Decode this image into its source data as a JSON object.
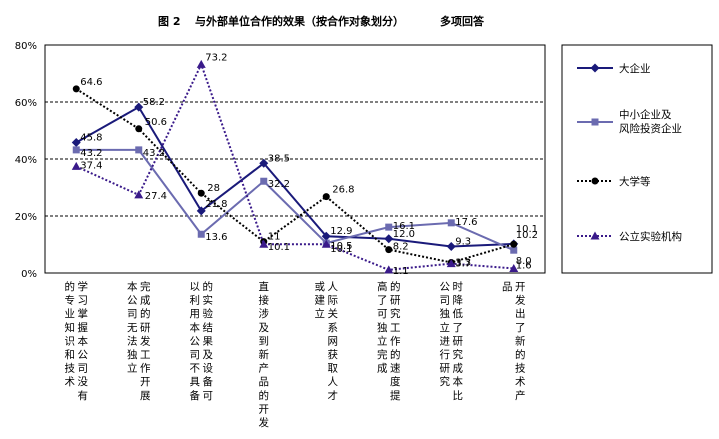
{
  "chart_data": {
    "type": "line",
    "title_number": "图 2",
    "title": "与外部单位合作的效果（按合作对象划分）",
    "subtitle": "多项回答",
    "ylim": [
      0,
      80
    ],
    "yticks": [
      "0%",
      "20%",
      "40%",
      "60%",
      "80%"
    ],
    "grid": true,
    "legend_position": "right",
    "categories": [
      "学习掌握本公司没有的专业知识和技术",
      "完成的研发工作开展本公司无法独立",
      "的实验结果及设备可以利用本公司不具备",
      "直接涉及到新产品的开发",
      "人际关系网获取人才或建立",
      "的研究工作的速度提高了可独立完成",
      "时降低了研究成本比公司独立进行研究",
      "开发出了新的技术产品"
    ],
    "series": [
      {
        "name": "大企业",
        "color": "#1a1a7a",
        "style": "solid",
        "marker": "diamond",
        "values": [
          45.8,
          58.2,
          21.8,
          38.5,
          12.9,
          12.0,
          9.3,
          10.2
        ],
        "labels": [
          "45.8",
          "58.2",
          "21.8",
          "38.5",
          "12.9",
          "12.0",
          "9.3",
          "10.2"
        ]
      },
      {
        "name": "中小企业及风险投资企业",
        "color": "#6b6bb0",
        "style": "solid",
        "marker": "square",
        "values": [
          43.2,
          43.2,
          13.6,
          32.2,
          10.5,
          16.1,
          17.6,
          8.0
        ],
        "labels": [
          "43.2",
          "43.2",
          "13.6",
          "32.2",
          "10.5",
          "16.1",
          "17.6",
          "8.0"
        ]
      },
      {
        "name": "大学等",
        "color": "#000000",
        "style": "dotted",
        "marker": "circle",
        "values": [
          64.6,
          50.6,
          28,
          11,
          26.8,
          8.2,
          3.7,
          10.1
        ],
        "labels": [
          "64.6",
          "50.6",
          "28",
          "11",
          "26.8",
          "8.2",
          "3.7",
          "10.1"
        ]
      },
      {
        "name": "公立实验机构",
        "color": "#3a1a8a",
        "style": "dotted",
        "marker": "triangle",
        "values": [
          37.4,
          27.4,
          73.2,
          10.1,
          10.1,
          1.1,
          3.3,
          1.6
        ],
        "labels": [
          "37.4",
          "27.4",
          "73.2",
          "10.1",
          "10.1",
          "1.1",
          "3.3",
          "1.6"
        ]
      }
    ]
  }
}
